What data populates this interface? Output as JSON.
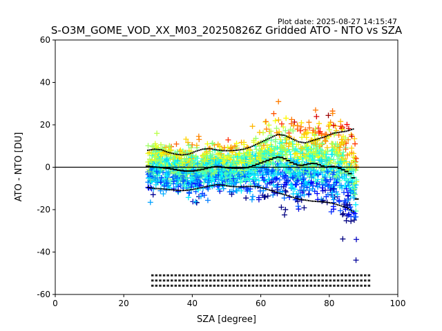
{
  "plot_date": "Plot date: 2025-08-27 14:15:47",
  "chart_data": {
    "type": "scatter",
    "title": "S-O3M_GOME_VOD_XX_M03_20250826Z Gridded ATO - NTO vs SZA",
    "xlabel": "SZA [degree]",
    "ylabel": "ATO - NTO [DU]",
    "xlim": [
      0,
      100
    ],
    "ylim": [
      -60,
      60
    ],
    "xticks": [
      "0",
      "20",
      "40",
      "60",
      "80",
      "100"
    ],
    "yticks": [
      "60",
      "40",
      "20",
      "0",
      "-20",
      "-40",
      "-60"
    ],
    "grid": false,
    "zero_line": 0,
    "scatter_extent": {
      "sza_min": 27,
      "sza_max": 88
    },
    "marker": "+",
    "colormap": "jet",
    "median": {
      "x": [
        27,
        28,
        29,
        30,
        31,
        32,
        33,
        34,
        35,
        36,
        37,
        38,
        39,
        40,
        41,
        42,
        43,
        44,
        45,
        46,
        47,
        48,
        49,
        50,
        51,
        52,
        53,
        54,
        55,
        56,
        57,
        58,
        59,
        60,
        61,
        62,
        63,
        64,
        65,
        66,
        67,
        68,
        69,
        70,
        71,
        72,
        73,
        74,
        75,
        76,
        77,
        78,
        79,
        80,
        81,
        82,
        83,
        84,
        85,
        86,
        87,
        88
      ],
      "y": [
        0.5,
        0.3,
        0.1,
        0,
        -0.2,
        -0.4,
        -0.5,
        -0.8,
        -1.1,
        -1.4,
        -1.6,
        -1.8,
        -1.8,
        -1.8,
        -1.6,
        -1.3,
        -1,
        -0.6,
        -0.2,
        0.1,
        0.3,
        0.2,
        0,
        -0.2,
        -0.3,
        -0.4,
        -0.4,
        -0.4,
        -0.3,
        -0.2,
        0.2,
        0.8,
        1.4,
        2,
        2.6,
        3.2,
        3.8,
        4.4,
        4.8,
        4.6,
        4,
        3.1,
        2.2,
        1.5,
        1,
        0.9,
        1.2,
        1.6,
        1.8,
        1.7,
        1.2,
        0.6,
        0,
        0.2,
        0.4,
        0.1,
        -0.5,
        -1.2,
        -2,
        -3,
        -5,
        -15
      ]
    },
    "upper_band": {
      "x": [
        27,
        29,
        31,
        33,
        35,
        37,
        39,
        41,
        43,
        45,
        47,
        49,
        51,
        53,
        55,
        57,
        59,
        61,
        63,
        65,
        67,
        69,
        71,
        73,
        75,
        77,
        79,
        81,
        83,
        85,
        87
      ],
      "y": [
        8,
        8.5,
        8.2,
        7,
        6.2,
        5.8,
        6.2,
        7.5,
        8.5,
        8.8,
        8.2,
        7.8,
        7.8,
        8,
        8.5,
        9.5,
        11,
        12.5,
        14,
        15.5,
        15,
        13.5,
        12,
        11.5,
        12.5,
        13.5,
        14.5,
        16,
        16.5,
        17,
        18
      ]
    },
    "lower_band": {
      "x": [
        27,
        29,
        31,
        33,
        35,
        37,
        39,
        41,
        43,
        45,
        47,
        49,
        51,
        53,
        55,
        57,
        59,
        61,
        63,
        65,
        67,
        69,
        71,
        73,
        75,
        77,
        79,
        81,
        83,
        85,
        87
      ],
      "y": [
        -9.5,
        -10,
        -10.2,
        -10.5,
        -10.8,
        -11,
        -10.8,
        -10.2,
        -9.5,
        -8.8,
        -8.3,
        -8.5,
        -9,
        -9.2,
        -9.2,
        -9,
        -9.2,
        -10,
        -11,
        -12,
        -13,
        -14,
        -15,
        -15.5,
        -16,
        -16.2,
        -16.5,
        -17,
        -18,
        -19,
        -21
      ]
    }
  }
}
